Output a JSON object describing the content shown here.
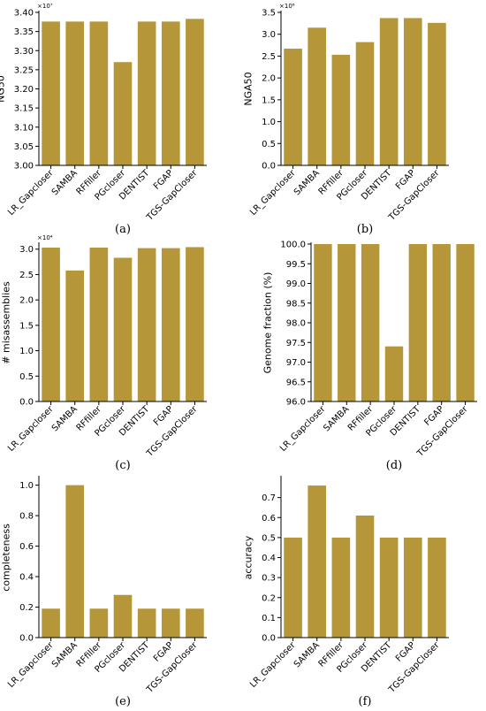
{
  "style": {
    "bar_color": "#b5973a",
    "axis_color": "#000000",
    "background": "#ffffff"
  },
  "chart_data": [
    {
      "type": "bar",
      "panel_label": "(a)",
      "categories": [
        "LR_Gapcloser",
        "SAMBA",
        "RFfiller",
        "PGcloser",
        "DENTIST",
        "FGAP",
        "TGS-GapCloser"
      ],
      "values": [
        3.376,
        3.376,
        3.376,
        3.27,
        3.376,
        3.376,
        3.383
      ],
      "ylabel": "NG50",
      "ylim": [
        3.0,
        3.4
      ],
      "yticks": [
        3.0,
        3.05,
        3.1,
        3.15,
        3.2,
        3.25,
        3.3,
        3.35,
        3.4
      ],
      "ytick_labels": [
        "3.00",
        "3.05",
        "3.10",
        "3.15",
        "3.20",
        "3.25",
        "3.30",
        "3.35",
        "3.40"
      ],
      "multiplier": "×10⁷",
      "grid": false,
      "legend": "none"
    },
    {
      "type": "bar",
      "panel_label": "(b)",
      "categories": [
        "LR_Gapcloser",
        "SAMBA",
        "RFfiller",
        "PGcloser",
        "DENTIST",
        "FGAP",
        "TGS-GapCloser"
      ],
      "values": [
        2.67,
        3.15,
        2.53,
        2.82,
        3.37,
        3.37,
        3.26
      ],
      "ylabel": "NGA50",
      "ylim": [
        0,
        3.5
      ],
      "yticks": [
        0,
        0.5,
        1.0,
        1.5,
        2.0,
        2.5,
        3.0,
        3.5
      ],
      "ytick_labels": [
        "0.0",
        "0.5",
        "1.0",
        "1.5",
        "2.0",
        "2.5",
        "3.0",
        "3.5"
      ],
      "multiplier": "×10⁶",
      "grid": false,
      "legend": "none"
    },
    {
      "type": "bar",
      "panel_label": "(c)",
      "categories": [
        "LR_Gapcloser",
        "SAMBA",
        "RFfiller",
        "PGcloser",
        "DENTIST",
        "FGAP",
        "TGS-GapCloser"
      ],
      "values": [
        3.03,
        2.58,
        3.03,
        2.83,
        3.02,
        3.02,
        3.04
      ],
      "ylabel": "# misassemblies",
      "ylim": [
        0,
        3.1
      ],
      "yticks": [
        0,
        0.5,
        1.0,
        1.5,
        2.0,
        2.5,
        3.0
      ],
      "ytick_labels": [
        "0.0",
        "0.5",
        "1.0",
        "1.5",
        "2.0",
        "2.5",
        "3.0"
      ],
      "multiplier": "×10⁴",
      "grid": false,
      "legend": "none"
    },
    {
      "type": "bar",
      "panel_label": "(d)",
      "categories": [
        "LR_Gapcloser",
        "SAMBA",
        "RFfiller",
        "PGcloser",
        "DENTIST",
        "FGAP",
        "TGS-GapCloser"
      ],
      "values": [
        100.0,
        100.0,
        100.0,
        97.4,
        100.0,
        100.0,
        100.0
      ],
      "ylabel": "Genome fraction (%)",
      "ylim": [
        96.0,
        100.0
      ],
      "yticks": [
        96.0,
        96.5,
        97.0,
        97.5,
        98.0,
        98.5,
        99.0,
        99.5,
        100.0
      ],
      "ytick_labels": [
        "96.0",
        "96.5",
        "97.0",
        "97.5",
        "98.0",
        "98.5",
        "99.0",
        "99.5",
        "100.0"
      ],
      "multiplier": "",
      "grid": false,
      "legend": "none"
    },
    {
      "type": "bar",
      "panel_label": "(e)",
      "categories": [
        "LR_Gapcloser",
        "SAMBA",
        "RFfiller",
        "PGcloser",
        "DENTIST",
        "FGAP",
        "TGS-GapCloser"
      ],
      "values": [
        0.19,
        1.0,
        0.19,
        0.28,
        0.19,
        0.19,
        0.19
      ],
      "ylabel": "completeness",
      "ylim": [
        0,
        1.05
      ],
      "yticks": [
        0,
        0.2,
        0.4,
        0.6,
        0.8,
        1.0
      ],
      "ytick_labels": [
        "0.0",
        "0.2",
        "0.4",
        "0.6",
        "0.8",
        "1.0"
      ],
      "multiplier": "",
      "grid": false,
      "legend": "none"
    },
    {
      "type": "bar",
      "panel_label": "(f)",
      "categories": [
        "LR_Gapcloser",
        "SAMBA",
        "RFfiller",
        "PGcloser",
        "DENTIST",
        "FGAP",
        "TGS-GapCloser"
      ],
      "values": [
        0.5,
        0.76,
        0.5,
        0.61,
        0.5,
        0.5,
        0.5
      ],
      "ylabel": "accuracy",
      "ylim": [
        0,
        0.8
      ],
      "yticks": [
        0,
        0.1,
        0.2,
        0.3,
        0.4,
        0.5,
        0.6,
        0.7
      ],
      "ytick_labels": [
        "0.0",
        "0.1",
        "0.2",
        "0.3",
        "0.4",
        "0.5",
        "0.6",
        "0.7"
      ],
      "multiplier": "",
      "grid": false,
      "legend": "none"
    }
  ]
}
